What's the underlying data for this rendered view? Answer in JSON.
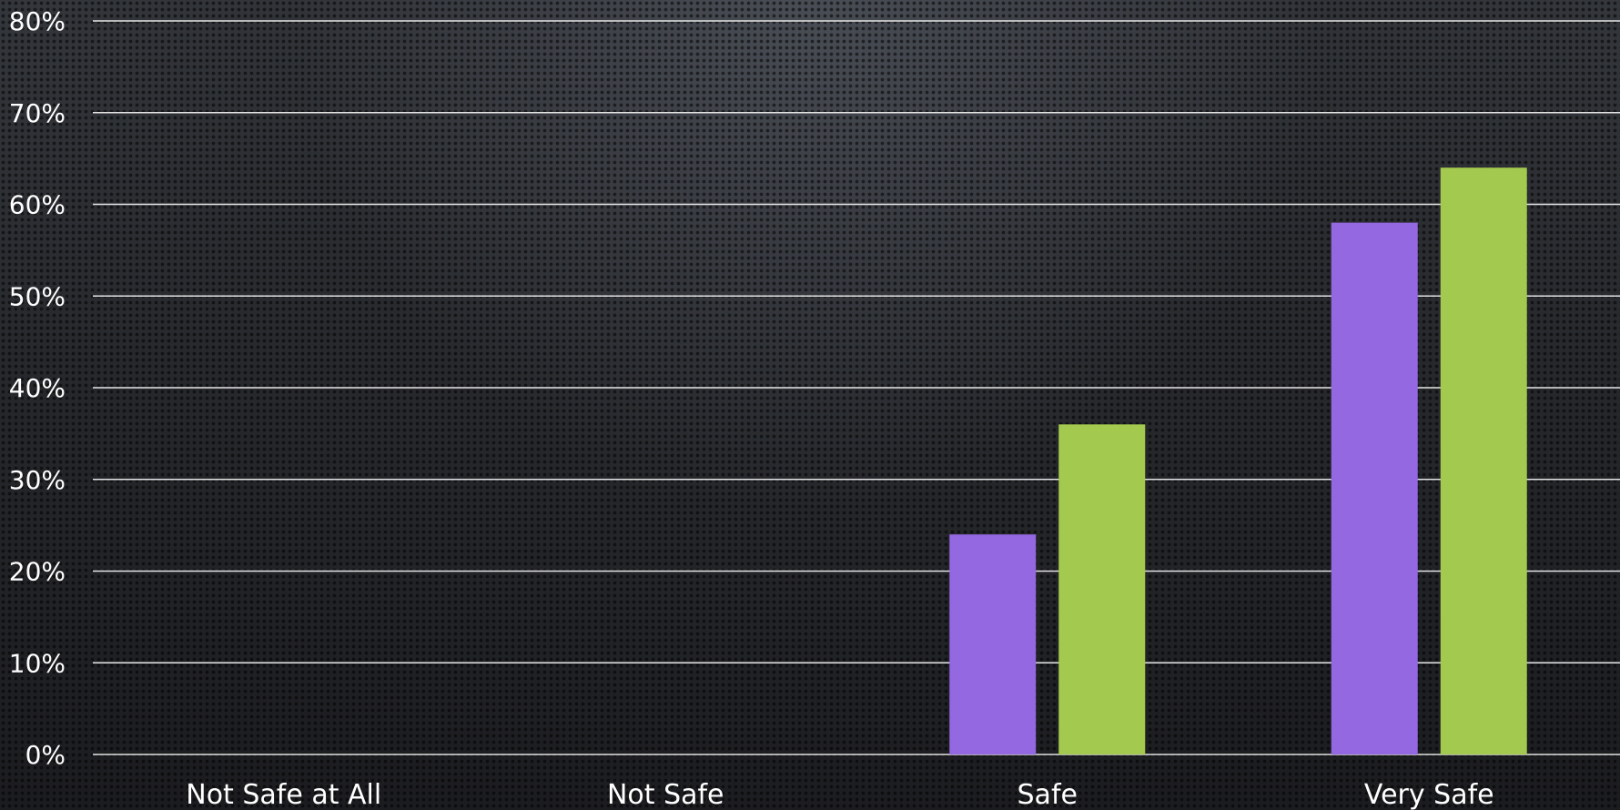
{
  "chart_data": {
    "type": "bar",
    "categories": [
      "Not Safe at All",
      "Not Safe",
      "Safe",
      "Very Safe"
    ],
    "series": [
      {
        "color": "#9368e0",
        "values": [
          0,
          0,
          24,
          58
        ]
      },
      {
        "color": "#a4c94f",
        "values": [
          0,
          0,
          36,
          64
        ]
      }
    ],
    "ylim": [
      0,
      80
    ],
    "yticks": [
      0,
      10,
      20,
      30,
      40,
      50,
      60,
      70,
      80
    ],
    "ytick_format": "{v}%",
    "grid": true,
    "title": "",
    "xlabel": "",
    "ylabel": ""
  }
}
